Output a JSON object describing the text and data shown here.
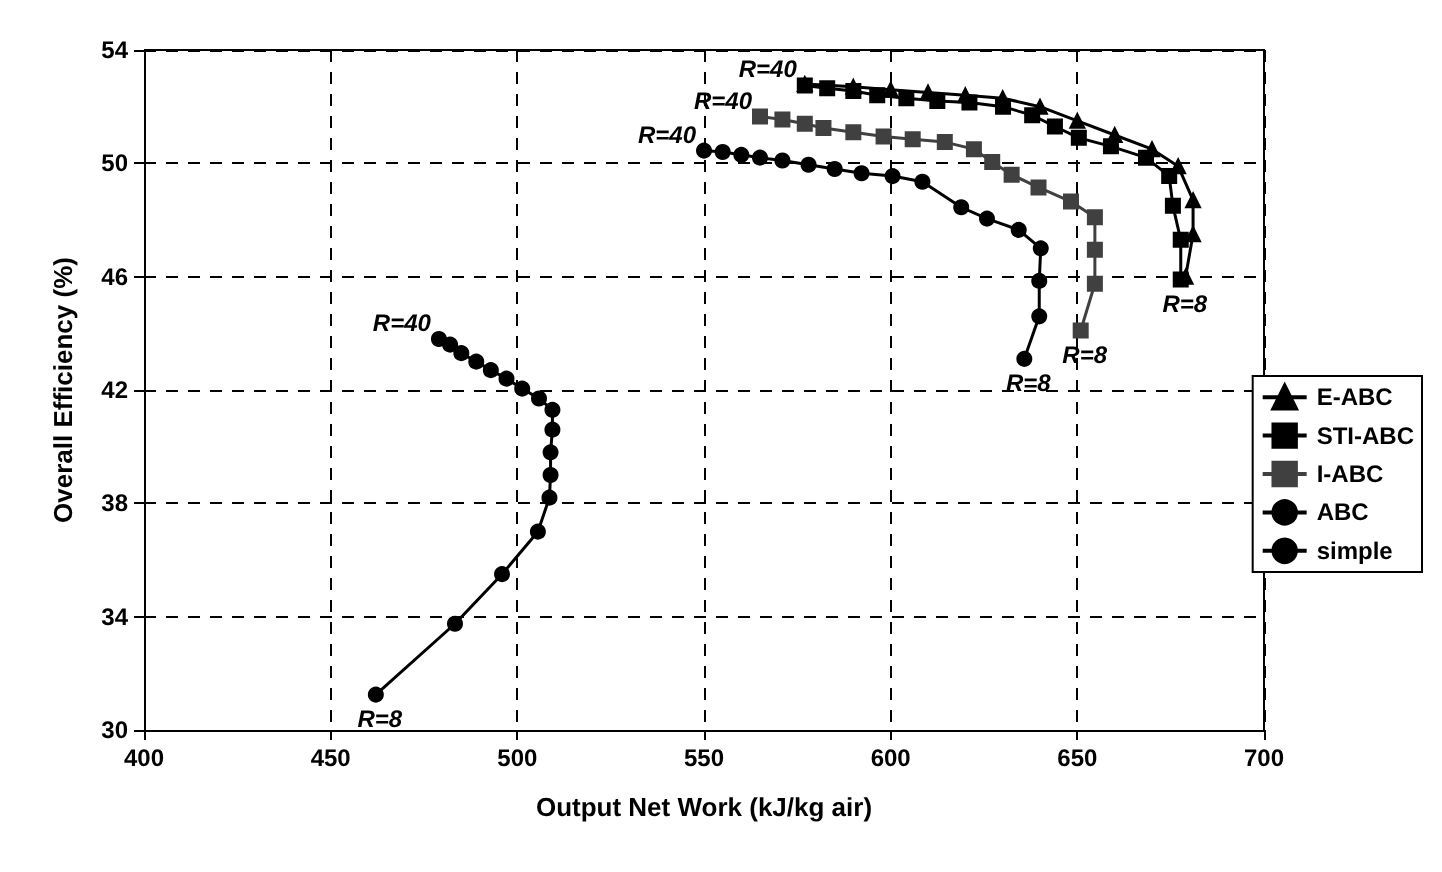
{
  "chart_data": {
    "type": "line",
    "xlabel": "Output Net Work (kJ/kg air)",
    "ylabel": "Overall Efficiency (%)",
    "xlim": [
      400,
      700
    ],
    "xticks": [
      400,
      450,
      500,
      550,
      600,
      650,
      700
    ],
    "ylim": [
      30,
      54
    ],
    "yticks": [
      30,
      34,
      38,
      42,
      46,
      50,
      54
    ],
    "grid": true,
    "legend": "right",
    "line_style": "solid",
    "series": [
      {
        "name": "E-ABC",
        "color": "#000000",
        "marker": "triangle",
        "x": [
          679,
          681,
          681,
          677,
          670,
          660,
          650,
          640,
          630,
          620,
          610,
          600,
          590,
          577
        ],
        "values": [
          46.0,
          47.5,
          48.7,
          49.9,
          50.5,
          51.0,
          51.5,
          52.0,
          52.3,
          52.4,
          52.5,
          52.6,
          52.7,
          52.8
        ]
      },
      {
        "name": "STI-ABC",
        "color": "#000000",
        "marker": "square",
        "x": [
          677.7,
          677.7,
          675.6,
          674.6,
          668.4,
          659.0,
          650.4,
          644.0,
          637.9,
          630.1,
          621.1,
          612.5,
          604.2,
          596.4,
          590,
          583,
          577
        ],
        "values": [
          45.9,
          47.3,
          48.5,
          49.55,
          50.2,
          50.6,
          50.9,
          51.3,
          51.7,
          52.0,
          52.15,
          52.2,
          52.3,
          52.4,
          52.55,
          52.65,
          52.75
        ]
      },
      {
        "name": "I-ABC",
        "color": "#404040",
        "marker": "square",
        "x": [
          650.9,
          654.7,
          654.7,
          654.7,
          648.3,
          639.6,
          632.4,
          627.2,
          622.3,
          614.5,
          605.9,
          598.1,
          590,
          582,
          577,
          571,
          565
        ],
        "values": [
          44.1,
          45.75,
          46.95,
          48.1,
          48.65,
          49.15,
          49.6,
          50.05,
          50.5,
          50.75,
          50.85,
          50.95,
          51.1,
          51.25,
          51.4,
          51.55,
          51.65
        ]
      },
      {
        "name": "ABC",
        "color": "#000000",
        "marker": "circle",
        "x": [
          635.8,
          639.8,
          639.8,
          640.2,
          634.3,
          625.8,
          618.9,
          608.5,
          600.5,
          592.2,
          585,
          578,
          571,
          565,
          560,
          555,
          550
        ],
        "values": [
          43.1,
          44.6,
          45.85,
          47.0,
          47.65,
          48.05,
          48.45,
          49.35,
          49.55,
          49.65,
          49.8,
          49.95,
          50.1,
          50.2,
          50.3,
          50.4,
          50.45
        ]
      },
      {
        "name": "simple",
        "color": "#000000",
        "marker": "circle",
        "x": [
          462.1,
          483.3,
          495.9,
          505.5,
          508.6,
          508.9,
          508.9,
          509.4,
          509.4,
          505.8,
          501.3,
          497.1,
          492.9,
          489,
          485,
          482,
          479
        ],
        "values": [
          31.25,
          33.75,
          35.5,
          37.0,
          38.2,
          39.0,
          39.8,
          40.6,
          41.3,
          41.7,
          42.05,
          42.4,
          42.7,
          43.0,
          43.3,
          43.6,
          43.8
        ]
      }
    ],
    "annotations": [
      {
        "text": "R=40",
        "x": 479,
        "y": 43.8
      },
      {
        "text": "R=40",
        "x": 550,
        "y": 50.45
      },
      {
        "text": "R=40",
        "x": 565,
        "y": 51.65
      },
      {
        "text": "R=40",
        "x": 577,
        "y": 52.75
      },
      {
        "text": "R=8",
        "x": 462.1,
        "y": 31.25
      },
      {
        "text": "R=8",
        "x": 635.8,
        "y": 43.1
      },
      {
        "text": "R=8",
        "x": 650.9,
        "y": 44.1
      },
      {
        "text": "R=8",
        "x": 677.7,
        "y": 45.9
      }
    ]
  }
}
